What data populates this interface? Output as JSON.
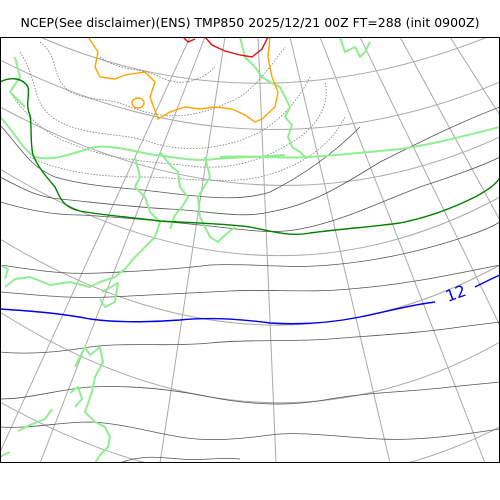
{
  "title": "NCEP(See disclaimer)(ENS) TMP850 2025/12/21 00Z FT=288 (init 0900Z)",
  "colors": {
    "background": "#ffffff",
    "frame": "#000000",
    "graticule": "#aaaaaa",
    "coastline": "#90ee90",
    "isotherm_thin": "#555555",
    "isotherm_dotted": "#777777",
    "isotherm_green": "#008000",
    "isotherm_blue": "#0000ee",
    "isotherm_orange": "#ffa500",
    "isotherm_red": "#dd1111"
  },
  "contour_labels": [
    {
      "text": "12",
      "color": "#0000ee"
    }
  ]
}
